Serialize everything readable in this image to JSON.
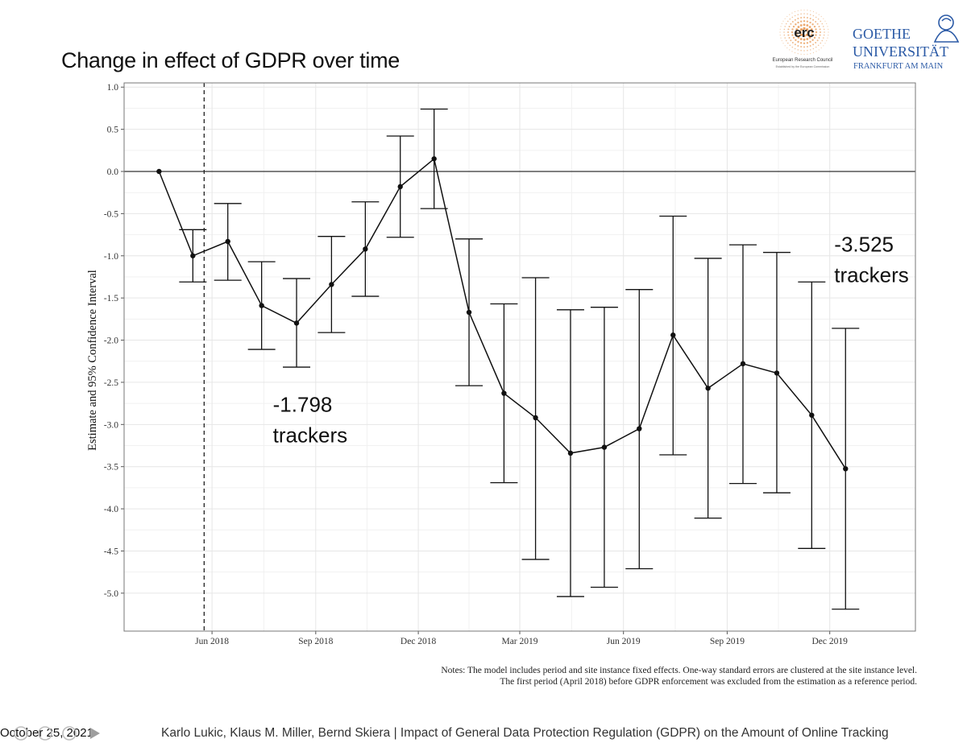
{
  "slide": {
    "title": "Change in effect of GDPR over time",
    "footer_date": "October 25, 2021",
    "footer_citation": "Karlo Lukic, Klaus M. Miller, Bernd Skiera | Impact of General Data Protection Regulation (GDPR) on the Amount of Online Tracking"
  },
  "logos": {
    "erc": {
      "acronym": "erc",
      "name": "European Research Council",
      "subline": "Established by the European Commission"
    },
    "goethe": {
      "line1": "GOETHE",
      "line2": "UNIVERSITÄT",
      "line3": "FRANKFURT AM MAIN"
    }
  },
  "notes": {
    "line1": "Notes: The model includes period and site instance fixed effects. One-way standard errors are clustered at the site instance level.",
    "line2": "The first period (April 2018) before GDPR enforcement was excluded from the estimation as a reference period."
  },
  "chart_data": {
    "type": "line",
    "ylabel": "Estimate and 95% Confidence Interval",
    "xlabel": "",
    "ylim": [
      -5.45,
      1.05
    ],
    "yticks": [
      "1.0",
      "0.5",
      "0.0",
      "-0.5",
      "-1.0",
      "-1.5",
      "-2.0",
      "-2.5",
      "-3.0",
      "-3.5",
      "-4.0",
      "-4.5",
      "-5.0"
    ],
    "ytick_values": [
      1.0,
      0.5,
      0.0,
      -0.5,
      -1.0,
      -1.5,
      -2.0,
      -2.5,
      -3.0,
      -3.5,
      -4.0,
      -4.5,
      -5.0
    ],
    "xticks": [
      "Jun 2018",
      "Sep 2018",
      "Dec 2018",
      "Mar 2019",
      "Jun 2019",
      "Sep 2019",
      "Dec 2019"
    ],
    "xtick_dates": [
      "2018-06-01",
      "2018-09-01",
      "2018-12-01",
      "2019-03-01",
      "2019-06-01",
      "2019-09-01",
      "2019-12-01"
    ],
    "x_range": [
      "2018-03-15",
      "2020-02-15"
    ],
    "grid": true,
    "reference_hline": 0.0,
    "gdpr_vline": "2018-05-25",
    "points": [
      {
        "x": "2018-04-15",
        "estimate": 0.0
      },
      {
        "x": "2018-05-15",
        "estimate": -1.0,
        "ci_low": -1.31,
        "ci_high": -0.69
      },
      {
        "x": "2018-06-15",
        "estimate": -0.83,
        "ci_low": -1.29,
        "ci_high": -0.38
      },
      {
        "x": "2018-07-15",
        "estimate": -1.59,
        "ci_low": -2.11,
        "ci_high": -1.07
      },
      {
        "x": "2018-08-15",
        "estimate": -1.798,
        "ci_low": -2.32,
        "ci_high": -1.27
      },
      {
        "x": "2018-09-15",
        "estimate": -1.34,
        "ci_low": -1.91,
        "ci_high": -0.77
      },
      {
        "x": "2018-10-15",
        "estimate": -0.92,
        "ci_low": -1.48,
        "ci_high": -0.36
      },
      {
        "x": "2018-11-15",
        "estimate": -0.18,
        "ci_low": -0.78,
        "ci_high": 0.42
      },
      {
        "x": "2018-12-15",
        "estimate": 0.15,
        "ci_low": -0.44,
        "ci_high": 0.74
      },
      {
        "x": "2019-01-15",
        "estimate": -1.67,
        "ci_low": -2.54,
        "ci_high": -0.8
      },
      {
        "x": "2019-02-15",
        "estimate": -2.63,
        "ci_low": -3.69,
        "ci_high": -1.57
      },
      {
        "x": "2019-03-15",
        "estimate": -2.92,
        "ci_low": -4.6,
        "ci_high": -1.26
      },
      {
        "x": "2019-04-15",
        "estimate": -3.34,
        "ci_low": -5.04,
        "ci_high": -1.64
      },
      {
        "x": "2019-05-15",
        "estimate": -3.27,
        "ci_low": -4.93,
        "ci_high": -1.61
      },
      {
        "x": "2019-06-15",
        "estimate": -3.05,
        "ci_low": -4.71,
        "ci_high": -1.4
      },
      {
        "x": "2019-07-15",
        "estimate": -1.94,
        "ci_low": -3.36,
        "ci_high": -0.53
      },
      {
        "x": "2019-08-15",
        "estimate": -2.57,
        "ci_low": -4.11,
        "ci_high": -1.03
      },
      {
        "x": "2019-09-15",
        "estimate": -2.28,
        "ci_low": -3.7,
        "ci_high": -0.87
      },
      {
        "x": "2019-10-15",
        "estimate": -2.39,
        "ci_low": -3.81,
        "ci_high": -0.96
      },
      {
        "x": "2019-11-15",
        "estimate": -2.89,
        "ci_low": -4.47,
        "ci_high": -1.31
      },
      {
        "x": "2019-12-15",
        "estimate": -3.525,
        "ci_low": -5.19,
        "ci_high": -1.86
      }
    ],
    "annotations": [
      {
        "line1": "-1.798",
        "line2": "trackers",
        "x": "2018-07-25",
        "y": -2.85
      },
      {
        "line1": "-3.525",
        "line2": "trackers",
        "x": "2019-12-05",
        "y": -0.95
      }
    ],
    "colors": {
      "line": "#111111",
      "grid": "#e6e6e6",
      "panel_border": "#777777"
    }
  }
}
